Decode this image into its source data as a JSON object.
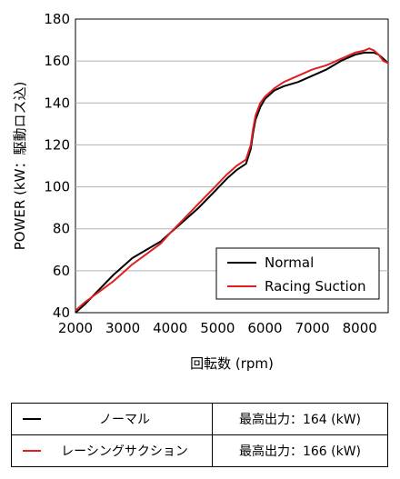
{
  "chart_data": {
    "type": "line",
    "title": "",
    "xlabel": "回転数 (rpm)",
    "ylabel": "POWER (kW：駆動ロス込)",
    "xlim": [
      2000,
      8600
    ],
    "ylim": [
      40,
      180
    ],
    "xticks": [
      2000,
      3000,
      4000,
      5000,
      6000,
      7000,
      8000
    ],
    "yticks": [
      40,
      60,
      80,
      100,
      120,
      140,
      160,
      180
    ],
    "grid": "horizontal",
    "legend_position": "bottom-right",
    "series": [
      {
        "name": "Normal",
        "color": "#000000",
        "x": [
          2000,
          2200,
          2500,
          2800,
          3000,
          3200,
          3500,
          3800,
          4000,
          4300,
          4600,
          4900,
          5200,
          5400,
          5600,
          5700,
          5750,
          5800,
          5900,
          6000,
          6200,
          6400,
          6700,
          7000,
          7300,
          7600,
          7900,
          8100,
          8200,
          8300,
          8400,
          8500,
          8600
        ],
        "y": [
          40,
          44,
          51,
          58,
          62,
          66,
          70,
          74,
          78,
          84,
          90,
          97,
          104,
          108,
          111,
          118,
          126,
          132,
          138,
          142,
          146,
          148,
          150,
          153,
          156,
          160,
          163,
          164,
          164,
          164,
          163,
          161,
          159
        ]
      },
      {
        "name": "Racing Suction",
        "color": "#e02020",
        "x": [
          2000,
          2200,
          2500,
          2800,
          3000,
          3200,
          3500,
          3800,
          4000,
          4300,
          4600,
          4900,
          5200,
          5400,
          5600,
          5700,
          5750,
          5800,
          5900,
          6000,
          6200,
          6400,
          6700,
          7000,
          7300,
          7600,
          7900,
          8100,
          8200,
          8300,
          8400,
          8500,
          8600
        ],
        "y": [
          41,
          45,
          50,
          55,
          59,
          63,
          68,
          73,
          78,
          85,
          92,
          99,
          106,
          110,
          113,
          120,
          128,
          134,
          140,
          143,
          147,
          150,
          153,
          156,
          158,
          161,
          164,
          165,
          166,
          165,
          163,
          160,
          159
        ]
      }
    ]
  },
  "spec_table": {
    "rows": [
      {
        "name": "ノーマル",
        "value": "最高出力：164 (kW)",
        "color": "#000000"
      },
      {
        "name": "レーシングサクション",
        "value": "最高出力：166 (kW)",
        "color": "#e02020"
      }
    ]
  }
}
